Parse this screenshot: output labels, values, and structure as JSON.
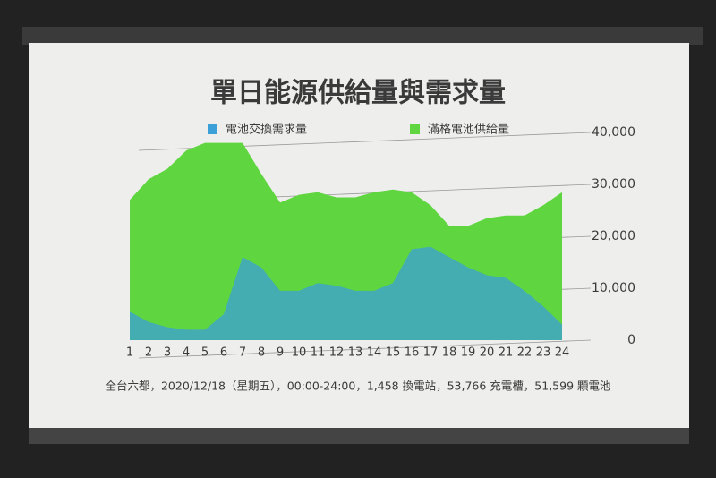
{
  "chart_data": {
    "type": "area",
    "title": "單日能源供給量與需求量",
    "annotation": "全台六都，2020/12/18（星期五），00:00-24:00，1,458 換電站，53,766 充電槽，51,599 顆電池",
    "categories": [
      "1",
      "2",
      "3",
      "4",
      "5",
      "6",
      "7",
      "8",
      "9",
      "10",
      "11",
      "12",
      "13",
      "14",
      "15",
      "16",
      "17",
      "18",
      "19",
      "20",
      "21",
      "22",
      "23",
      "24"
    ],
    "series": [
      {
        "name": "電池交換需求量",
        "color": "#3b9fd8",
        "values": [
          5500,
          3500,
          2500,
          2000,
          2000,
          5000,
          16000,
          14000,
          9500,
          9500,
          11000,
          10500,
          9500,
          9500,
          11000,
          17500,
          18000,
          16000,
          14000,
          12500,
          12000,
          9500,
          6500,
          3000
        ]
      },
      {
        "name": "滿格電池供給量",
        "color": "#5fd63f",
        "values": [
          27000,
          31000,
          33000,
          36500,
          38000,
          38000,
          38000,
          32000,
          26500,
          28000,
          28500,
          27500,
          27500,
          28500,
          29000,
          28500,
          26000,
          22000,
          22000,
          23500,
          24000,
          24000,
          26000,
          28500
        ]
      }
    ],
    "ylim": [
      0,
      40000
    ],
    "yticks": [
      0,
      {
        "value": 10000,
        "label": "10,000"
      },
      {
        "value": 20000,
        "label": "20,000"
      },
      {
        "value": 30000,
        "label": "30,000"
      },
      {
        "value": 40000,
        "label": "40,000"
      }
    ],
    "grid": true
  }
}
